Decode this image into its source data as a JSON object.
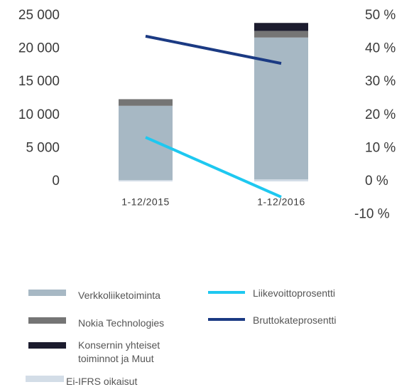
{
  "chart_data": {
    "type": "bar",
    "stacked": true,
    "categories": [
      "1-12/2015",
      "1-12/2016"
    ],
    "series": [
      {
        "name": "Ei-IFRS oikaisut",
        "color": "#d3dde7",
        "values": [
          200,
          300
        ]
      },
      {
        "name": "Verkkoliiketoiminta",
        "color": "#a7b8c4",
        "values": [
          11200,
          21400
        ]
      },
      {
        "name": "Nokia Technologies",
        "color": "#757575",
        "values": [
          1000,
          1000
        ]
      },
      {
        "name": "Konsernin yhteiset toiminnot ja Muut",
        "color": "#1c1c2e",
        "values": [
          0,
          1200
        ]
      },
      {
        "name": "Liikevoittoprosentti",
        "type": "line",
        "axis": "y2",
        "color": "#1ec8f0",
        "values": [
          13.3,
          -4.7
        ]
      },
      {
        "name": "Bruttokateprosentti",
        "type": "line",
        "axis": "y2",
        "color": "#1b3a83",
        "values": [
          43.8,
          35.6
        ]
      }
    ],
    "ylim": [
      0,
      25000
    ],
    "yticks": [
      {
        "value": 25000,
        "label": "25 000"
      },
      {
        "value": 20000,
        "label": "20 000"
      },
      {
        "value": 15000,
        "label": "15 000"
      },
      {
        "value": 10000,
        "label": "10 000"
      },
      {
        "value": 5000,
        "label": "5 000"
      },
      0
    ],
    "y2lim": [
      -10,
      50
    ],
    "y2ticks": [
      {
        "value": 50,
        "label": "50 %"
      },
      {
        "value": 40,
        "label": "40 %"
      },
      {
        "value": 30,
        "label": "30 %"
      },
      {
        "value": 20,
        "label": "20 %"
      },
      {
        "value": 10,
        "label": "10 %"
      },
      {
        "value": 0,
        "label": "0 %"
      },
      {
        "value": -10,
        "label": "-10 %"
      }
    ],
    "grid": false,
    "legend": "bottom"
  }
}
